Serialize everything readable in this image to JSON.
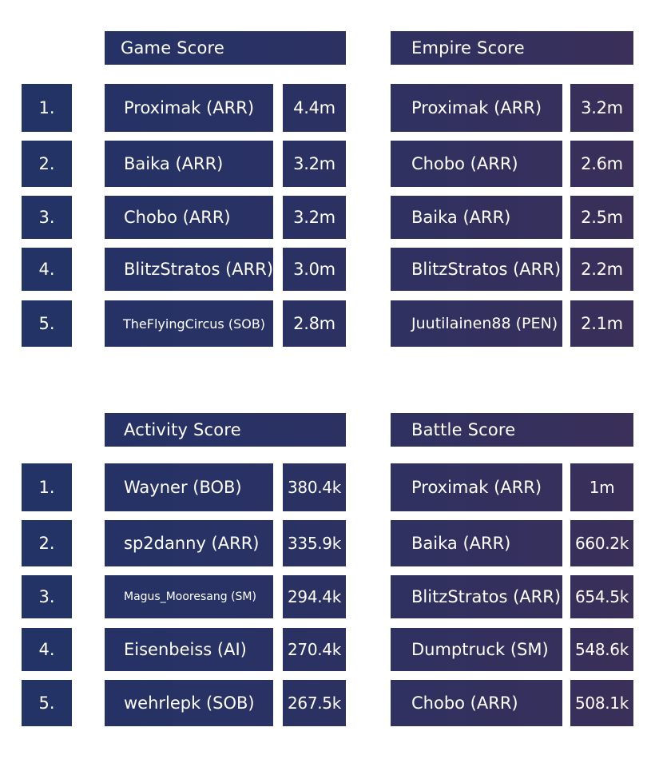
{
  "colors": {
    "panel_start": "#233366",
    "panel_end": "#3b3059",
    "background": "#ffffff"
  },
  "ranks": [
    "1.",
    "2.",
    "3.",
    "4.",
    "5."
  ],
  "game_score": {
    "title": "Game Score",
    "rows": [
      {
        "name": "Proximak (ARR)",
        "value": "4.4m"
      },
      {
        "name": "Baika (ARR)",
        "value": "3.2m"
      },
      {
        "name": "Chobo (ARR)",
        "value": "3.2m"
      },
      {
        "name": "BlitzStratos (ARR)",
        "value": "3.0m"
      },
      {
        "name": "TheFlyingCircus (SOB)",
        "value": "2.8m"
      }
    ]
  },
  "empire_score": {
    "title": "Empire Score",
    "rows": [
      {
        "name": "Proximak (ARR)",
        "value": "3.2m"
      },
      {
        "name": "Chobo (ARR)",
        "value": "2.6m"
      },
      {
        "name": "Baika (ARR)",
        "value": "2.5m"
      },
      {
        "name": "BlitzStratos (ARR)",
        "value": "2.2m"
      },
      {
        "name": "Juutilainen88 (PEN)",
        "value": "2.1m"
      }
    ]
  },
  "activity_score": {
    "title": "Activity Score",
    "rows": [
      {
        "name": "Wayner (BOB)",
        "value": "380.4k"
      },
      {
        "name": "sp2danny (ARR)",
        "value": "335.9k"
      },
      {
        "name": "Magus_Mooresang (SM)",
        "value": "294.4k"
      },
      {
        "name": "Eisenbeiss (AI)",
        "value": "270.4k"
      },
      {
        "name": "wehrlepk (SOB)",
        "value": "267.5k"
      }
    ]
  },
  "battle_score": {
    "title": "Battle Score",
    "rows": [
      {
        "name": "Proximak (ARR)",
        "value": "1m"
      },
      {
        "name": "Baika (ARR)",
        "value": "660.2k"
      },
      {
        "name": "BlitzStratos (ARR)",
        "value": "654.5k"
      },
      {
        "name": "Dumptruck (SM)",
        "value": "548.6k"
      },
      {
        "name": "Chobo (ARR)",
        "value": "508.1k"
      }
    ]
  }
}
